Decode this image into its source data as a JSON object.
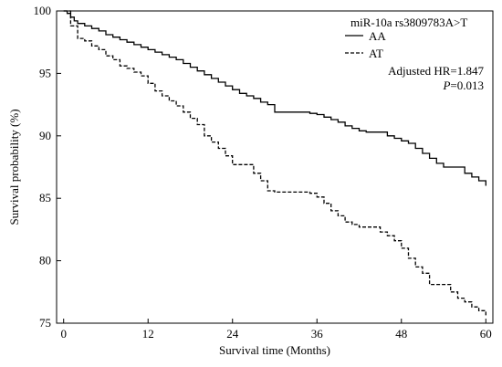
{
  "chart_data": {
    "type": "line",
    "xlabel": "Survival time (Months)",
    "ylabel": "Survival probability (%)",
    "xlim": [
      -1,
      61
    ],
    "ylim": [
      75,
      100
    ],
    "xticks": [
      0,
      12,
      24,
      36,
      48,
      60
    ],
    "yticks": [
      75,
      80,
      85,
      90,
      95,
      100
    ],
    "grid": false,
    "legend_title": "miR-10a rs3809783A>T",
    "legend_position": "top-right",
    "annotation_hr": "Adjusted HR=1.847",
    "annotation_p_symbol": "P",
    "annotation_p_value": "=0.013",
    "series": [
      {
        "name": "AA",
        "style": "solid",
        "color": "#000000",
        "x": [
          0,
          0.5,
          1,
          1.5,
          2,
          3,
          4,
          5,
          6,
          7,
          8,
          9,
          10,
          11,
          12,
          13,
          14,
          15,
          16,
          17,
          18,
          19,
          20,
          21,
          22,
          23,
          24,
          25,
          26,
          27,
          28,
          29,
          30,
          31,
          32,
          33,
          34,
          35,
          36,
          37,
          38,
          39,
          40,
          41,
          42,
          43,
          44,
          45,
          46,
          47,
          48,
          49,
          50,
          51,
          52,
          53,
          54,
          55,
          56,
          57,
          58,
          59,
          60
        ],
        "y": [
          100,
          99.8,
          99.5,
          99.2,
          99,
          98.8,
          98.6,
          98.4,
          98.1,
          97.9,
          97.7,
          97.5,
          97.3,
          97.1,
          96.9,
          96.7,
          96.5,
          96.3,
          96.1,
          95.8,
          95.5,
          95.2,
          94.9,
          94.6,
          94.3,
          94.0,
          93.7,
          93.4,
          93.2,
          93.0,
          92.7,
          92.5,
          91.9,
          91.9,
          91.9,
          91.9,
          91.9,
          91.8,
          91.7,
          91.5,
          91.3,
          91.1,
          90.8,
          90.6,
          90.4,
          90.3,
          90.3,
          90.3,
          90.0,
          89.8,
          89.6,
          89.4,
          89.0,
          88.6,
          88.2,
          87.8,
          87.5,
          87.5,
          87.5,
          87.0,
          86.7,
          86.4,
          86.0
        ]
      },
      {
        "name": "AT",
        "style": "dashed",
        "color": "#000000",
        "x": [
          0,
          1,
          2,
          3,
          4,
          5,
          6,
          7,
          8,
          9,
          10,
          11,
          12,
          13,
          14,
          15,
          16,
          17,
          18,
          19,
          20,
          21,
          22,
          23,
          24,
          25,
          26,
          27,
          28,
          29,
          30,
          31,
          32,
          33,
          34,
          35,
          36,
          37,
          38,
          39,
          40,
          41,
          42,
          43,
          44,
          45,
          46,
          47,
          48,
          49,
          50,
          51,
          52,
          53,
          54,
          55,
          56,
          57,
          58,
          59,
          60
        ],
        "y": [
          100,
          98.8,
          97.8,
          97.6,
          97.2,
          96.9,
          96.4,
          96.1,
          95.6,
          95.4,
          95.1,
          94.8,
          94.2,
          93.6,
          93.2,
          92.8,
          92.4,
          91.9,
          91.4,
          90.9,
          90.0,
          89.5,
          89.0,
          88.4,
          87.7,
          87.7,
          87.7,
          87.0,
          86.4,
          85.6,
          85.5,
          85.5,
          85.5,
          85.5,
          85.5,
          85.4,
          85.1,
          84.6,
          84.0,
          83.6,
          83.1,
          82.9,
          82.7,
          82.7,
          82.7,
          82.3,
          82.0,
          81.6,
          81.0,
          80.2,
          79.5,
          79.0,
          78.1,
          78.1,
          78.1,
          77.5,
          77.0,
          76.7,
          76.3,
          76.0,
          75.6
        ]
      }
    ]
  }
}
